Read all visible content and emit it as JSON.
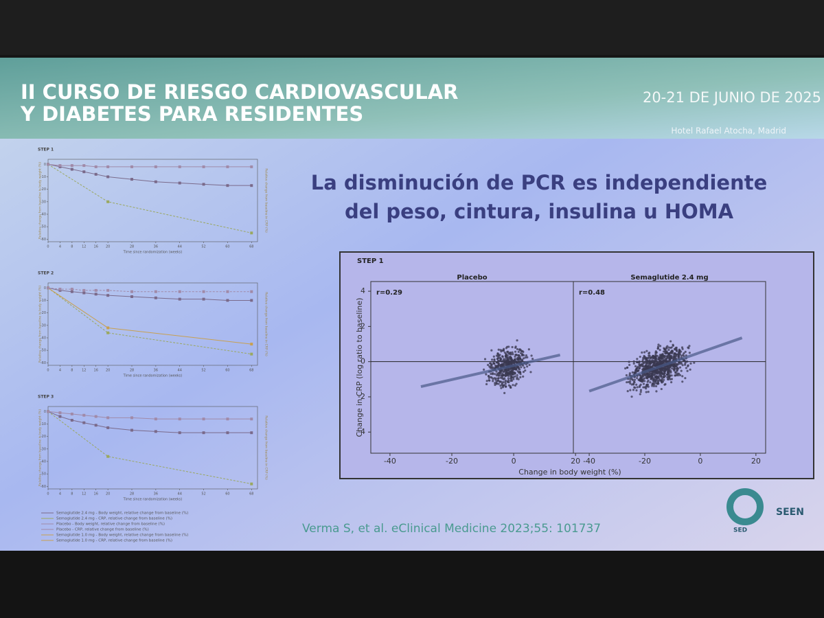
{
  "header": {
    "title_lines": [
      "II CURSO  DE RIESGO CARDIOVASCULAR",
      "Y DIABETES PARA RESIDENTES"
    ],
    "date": "20-21 DE JUNIO DE 2025",
    "venue": "Hotel Rafael Atocha, Madrid"
  },
  "headline": [
    "La disminución de PCR es independiente",
    "del peso, cintura, insulina u HOMA"
  ],
  "scatter_figure": {
    "step": "STEP 1",
    "y_label": "Change in CRP (log ratio to baseline)",
    "x_label": "Change in body weight (%)",
    "ylim": [
      -5.2,
      4.55
    ],
    "yticks": [
      4,
      2,
      0,
      -2,
      -4
    ],
    "panels": [
      {
        "title": "Placebo",
        "r": "r=0.29",
        "xlim": [
          -46.2,
          19.3
        ],
        "xticks": [
          -40,
          -20,
          0,
          20
        ]
      },
      {
        "title": "Semaglutide 2.4 mg",
        "r": "r=0.48",
        "xlim": [
          -45.7,
          23.5
        ],
        "xticks": [
          -40,
          -20,
          0,
          20
        ]
      }
    ]
  },
  "left_charts": {
    "x_label": "Time since randomization (weeks)",
    "y_label_left": "Relative change from baseline in body weight (%)",
    "y_label_right": "Relative change from baseline in CRP (%)",
    "weeks": [
      0,
      4,
      8,
      12,
      16,
      20,
      28,
      36,
      44,
      52,
      60,
      68
    ],
    "xlim": [
      0,
      70
    ],
    "ylim": [
      -62,
      4
    ],
    "yticks": [
      0,
      -10,
      -20,
      -30,
      -40,
      -50,
      -60
    ],
    "charts": [
      {
        "label": "STEP 1",
        "series": [
          {
            "color": "#7a6a8a",
            "values": [
              0,
              -2,
              -4,
              -6,
              -8,
              -10,
              -12,
              -14,
              -15,
              -16,
              -17,
              -17
            ]
          },
          {
            "color": "#9aa860",
            "values": [
              0,
              null,
              null,
              null,
              null,
              -30,
              null,
              null,
              null,
              null,
              null,
              -55
            ]
          },
          {
            "color": "#a08aa8",
            "values": [
              0,
              -1,
              -1,
              -1,
              -2,
              -2,
              -2,
              -2,
              -2,
              -2,
              -2,
              -2
            ]
          }
        ]
      },
      {
        "label": "STEP 2",
        "series": [
          {
            "color": "#7a6a8a",
            "values": [
              0,
              -2,
              -3,
              -4,
              -5,
              -6,
              -7,
              -8,
              -9,
              -9,
              -10,
              -10
            ]
          },
          {
            "color": "#9aa860",
            "values": [
              0,
              null,
              null,
              null,
              null,
              -36,
              null,
              null,
              null,
              null,
              null,
              -53
            ]
          },
          {
            "color": "#c8a050",
            "values": [
              0,
              null,
              null,
              null,
              null,
              -32,
              null,
              null,
              null,
              null,
              null,
              -45
            ]
          },
          {
            "color": "#a08aa8",
            "values": [
              0,
              -1,
              -1,
              -2,
              -2,
              -2,
              -3,
              -3,
              -3,
              -3,
              -3,
              -3
            ]
          }
        ]
      },
      {
        "label": "STEP 3",
        "series": [
          {
            "color": "#7a6a8a",
            "values": [
              0,
              -4,
              -7,
              -9,
              -11,
              -13,
              -15,
              -16,
              -17,
              -17,
              -17,
              -17
            ]
          },
          {
            "color": "#9aa860",
            "values": [
              0,
              null,
              null,
              null,
              null,
              -36,
              null,
              null,
              null,
              null,
              null,
              -58
            ]
          },
          {
            "color": "#a08aa8",
            "values": [
              0,
              -1,
              -2,
              -3,
              -4,
              -5,
              -5,
              -6,
              -6,
              -6,
              -6,
              -6
            ]
          }
        ]
      }
    ],
    "legend": [
      "Semaglutide 2.4 mg - Body weight, relative change from baseline (%)",
      "Semaglutide 2.4 mg - CRP, relative change from baseline (%)",
      "Placebo - Body weight, relative change from baseline (%)",
      "Placebo - CRP, relative change from baseline (%)",
      "Semaglutide 1.0 mg - Body weight, relative change from baseline (%)",
      "Semaglutide 1.0 mg - CRP, relative change from baseline (%)"
    ]
  },
  "citation": "Verma S, et al. eClinical Medicine 2023;55: 101737",
  "logos": {
    "sed": "SED",
    "seen": "SEEN"
  }
}
